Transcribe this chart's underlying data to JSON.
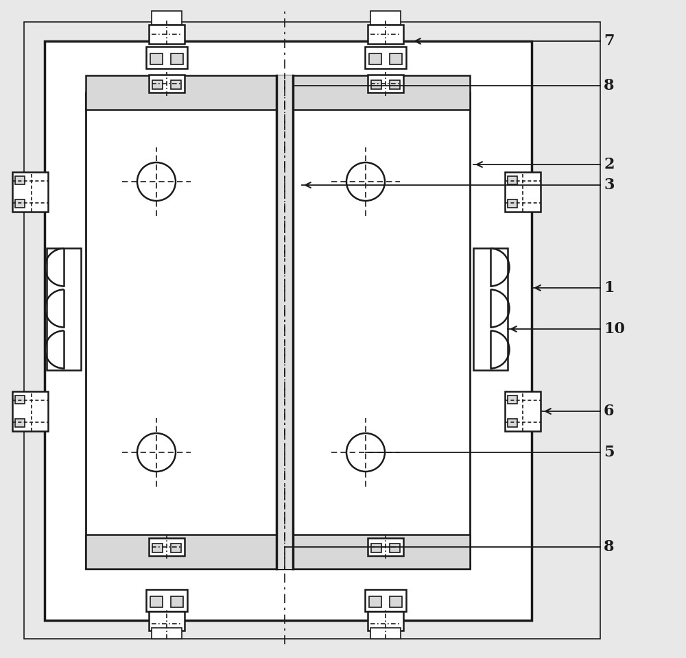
{
  "bg_color": "#e8e8e8",
  "line_color": "#1a1a1a",
  "white": "#ffffff",
  "light_gray": "#d8d8d8",
  "mid_gray": "#b0b0b0",
  "label_fontsize": 16,
  "label_color": "#1a1a1a"
}
